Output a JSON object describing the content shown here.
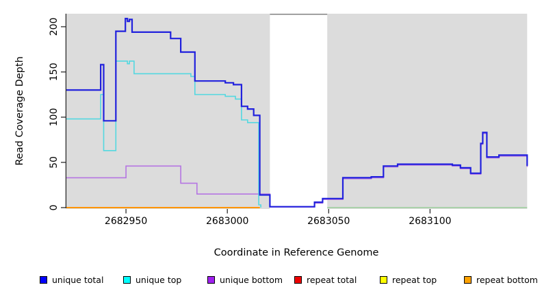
{
  "chart_data": {
    "type": "line",
    "title": "",
    "xlabel": "Coordinate in Reference Genome",
    "ylabel": "Read Coverage Depth",
    "xlim": [
      2682920.6,
      2683147.9
    ],
    "ylim": [
      0,
      214.4
    ],
    "x_ticks": [
      2682950,
      2683000,
      2683050,
      2683100
    ],
    "x_tick_labels": [
      "2682950",
      "2683000",
      "2683050",
      "2683100"
    ],
    "y_ticks": [
      0,
      50,
      100,
      150,
      200
    ],
    "y_tick_labels": [
      "0",
      "50",
      "100",
      "150",
      "200"
    ],
    "grid": false,
    "step_mode": "after",
    "legend_position": "bottom",
    "masked_region": {
      "x_start": 2683021,
      "x_end": 2683049.3,
      "fill": "#ffffff",
      "top_border": "#8a8a8a"
    },
    "series": [
      {
        "name": "unique total",
        "line_color": "#2121dd",
        "legend_color": "#0000ff",
        "line_width": 2.2,
        "points": [
          [
            2682920.6,
            130
          ],
          [
            2682937.5,
            158
          ],
          [
            2682939,
            96
          ],
          [
            2682945,
            195
          ],
          [
            2682949.7,
            209
          ],
          [
            2682950.7,
            206
          ],
          [
            2682951.7,
            208
          ],
          [
            2682953,
            194
          ],
          [
            2682972,
            187
          ],
          [
            2682977,
            172
          ],
          [
            2682984,
            140
          ],
          [
            2682999,
            138
          ],
          [
            2683003,
            136
          ],
          [
            2683007,
            112
          ],
          [
            2683010,
            109
          ],
          [
            2683013,
            102
          ],
          [
            2683016,
            14
          ],
          [
            2683021,
            1
          ],
          [
            2683043,
            6
          ],
          [
            2683047,
            10
          ],
          [
            2683057,
            33
          ],
          [
            2683071,
            34
          ],
          [
            2683077,
            46
          ],
          [
            2683084,
            48
          ],
          [
            2683111,
            47
          ],
          [
            2683115,
            44
          ],
          [
            2683120,
            38
          ],
          [
            2683125,
            71
          ],
          [
            2683126,
            83
          ],
          [
            2683128,
            56
          ],
          [
            2683134,
            58
          ],
          [
            2683147.9,
            46
          ]
        ]
      },
      {
        "name": "unique top",
        "line_color": "#53d8e0",
        "legend_color": "#00ffff",
        "line_width": 1.6,
        "points": [
          [
            2682920.6,
            98
          ],
          [
            2682937.5,
            125
          ],
          [
            2682939,
            63
          ],
          [
            2682945,
            162
          ],
          [
            2682950.7,
            159
          ],
          [
            2682951.7,
            162
          ],
          [
            2682954,
            148
          ],
          [
            2682982,
            145
          ],
          [
            2682984,
            125
          ],
          [
            2682999,
            123
          ],
          [
            2683004,
            120
          ],
          [
            2683007,
            97
          ],
          [
            2683010,
            94
          ],
          [
            2683015.5,
            3
          ],
          [
            2683016.5,
            0
          ]
        ]
      },
      {
        "name": "unique bottom",
        "line_color": "#b575e2",
        "legend_color": "#a020f0",
        "line_width": 1.6,
        "points": [
          [
            2682920.6,
            33
          ],
          [
            2682950,
            46
          ],
          [
            2682977,
            27
          ],
          [
            2682985,
            15
          ],
          [
            2683021,
            0.7
          ],
          [
            2683043,
            5
          ],
          [
            2683047,
            9
          ],
          [
            2683057,
            32
          ],
          [
            2683071,
            33
          ],
          [
            2683077,
            45
          ],
          [
            2683084,
            47
          ],
          [
            2683111,
            46
          ],
          [
            2683115,
            43
          ],
          [
            2683120,
            37
          ],
          [
            2683125,
            70
          ],
          [
            2683126,
            82
          ],
          [
            2683128,
            55
          ],
          [
            2683134,
            57
          ],
          [
            2683147.9,
            45
          ]
        ]
      },
      {
        "name": "repeat total",
        "line_color": "#ee0000",
        "legend_color": "#ee0000",
        "line_width": 1.6,
        "points": [
          [
            2682920.6,
            0
          ],
          [
            2683016,
            0
          ]
        ]
      },
      {
        "name": "repeat top",
        "line_color": "#ffff00",
        "legend_color": "#ffff00",
        "line_width": 1.6,
        "points": [
          [
            2682920.6,
            0
          ],
          [
            2683016,
            0
          ]
        ]
      },
      {
        "name": "repeat bottom",
        "line_color": "#ff9400",
        "legend_color": "#ffa200",
        "line_width": 2,
        "points": [
          [
            2682920.6,
            0
          ],
          [
            2683016,
            0
          ]
        ]
      },
      {
        "name": "baseline segment (unlabeled)",
        "line_color": "#9acd9a",
        "legend_color": null,
        "line_width": 1.5,
        "points": [
          [
            2683049.3,
            0
          ],
          [
            2683147.9,
            0
          ]
        ]
      }
    ],
    "panel_bg": "#dcdcdc",
    "axis_color": "#2b2b2b"
  },
  "legend": {
    "items": [
      {
        "label": "unique total",
        "color": "#0000ff"
      },
      {
        "label": "unique top",
        "color": "#00ffff"
      },
      {
        "label": "unique bottom",
        "color": "#a020f0"
      },
      {
        "label": "repeat total",
        "color": "#ee0000"
      },
      {
        "label": "repeat top",
        "color": "#ffff00"
      },
      {
        "label": "repeat bottom",
        "color": "#ffa200"
      }
    ]
  }
}
